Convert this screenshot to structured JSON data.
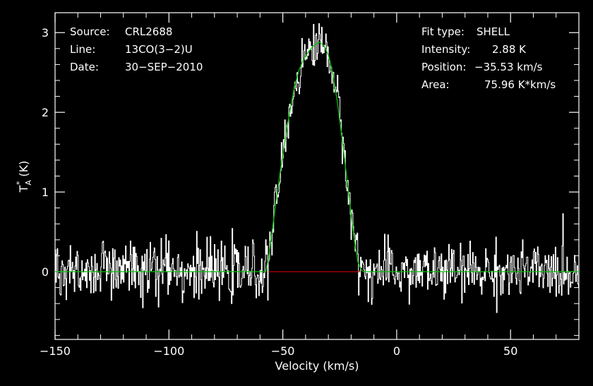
{
  "chart_data": {
    "type": "line",
    "xlabel": "Velocity (km/s)",
    "ylabel_main": "T",
    "ylabel_sup": "*",
    "ylabel_sub": "A",
    "ylabel_unit": "(K)",
    "xlim": [
      -150,
      80
    ],
    "ylim": [
      -0.85,
      3.25
    ],
    "x_ticks": [
      -150,
      -100,
      -50,
      0,
      50
    ],
    "x_tick_labels": [
      "−150",
      "−100",
      "−50",
      "0",
      "50"
    ],
    "y_ticks": [
      0,
      1,
      2,
      3
    ],
    "y_tick_labels": [
      "0",
      "1",
      "2",
      "3"
    ],
    "info_left": [
      {
        "label": "Source:",
        "value": "CRL2688"
      },
      {
        "label": "Line:",
        "value": "13CO(3−2)U"
      },
      {
        "label": "Date:",
        "value": "30−SEP−2010"
      }
    ],
    "info_right": [
      {
        "label": "Fit type:",
        "value": "SHELL"
      },
      {
        "label": "Intensity:",
        "value": "2.88 K"
      },
      {
        "label": "Position:",
        "value": "−35.53 km/s"
      },
      {
        "label": "Area:",
        "value": "75.96 K*km/s"
      }
    ],
    "fit": {
      "type": "SHELL",
      "intensity": 2.88,
      "position": -35.53,
      "area": 75.96,
      "x": [
        -150,
        -57.5,
        -56,
        -54.5,
        -53,
        -51,
        -49,
        -47,
        -45,
        -43,
        -41,
        -39,
        -37,
        -35.5,
        -34,
        -32,
        -30,
        -28,
        -26,
        -24,
        -22,
        -20,
        -18.5,
        -17,
        -15.5,
        -14.5,
        80
      ],
      "y": [
        0,
        0,
        0.22,
        0.55,
        0.88,
        1.28,
        1.65,
        2.0,
        2.3,
        2.52,
        2.66,
        2.75,
        2.82,
        2.86,
        2.88,
        2.84,
        2.72,
        2.48,
        2.12,
        1.68,
        1.2,
        0.72,
        0.38,
        0.12,
        0.02,
        0,
        0
      ]
    },
    "baseline_segment": {
      "x": [
        -56,
        -16
      ],
      "y": 0
    },
    "noise_rms": 0.17,
    "peak_noise_rms": 0.14,
    "channel_width": 0.3,
    "grid": false,
    "colors": {
      "background": "#000000",
      "axes": "#ffffff",
      "spectrum": "#ffffff",
      "fit": "#00c000",
      "baseline_segment": "#c00000",
      "text": "#ffffff"
    }
  }
}
